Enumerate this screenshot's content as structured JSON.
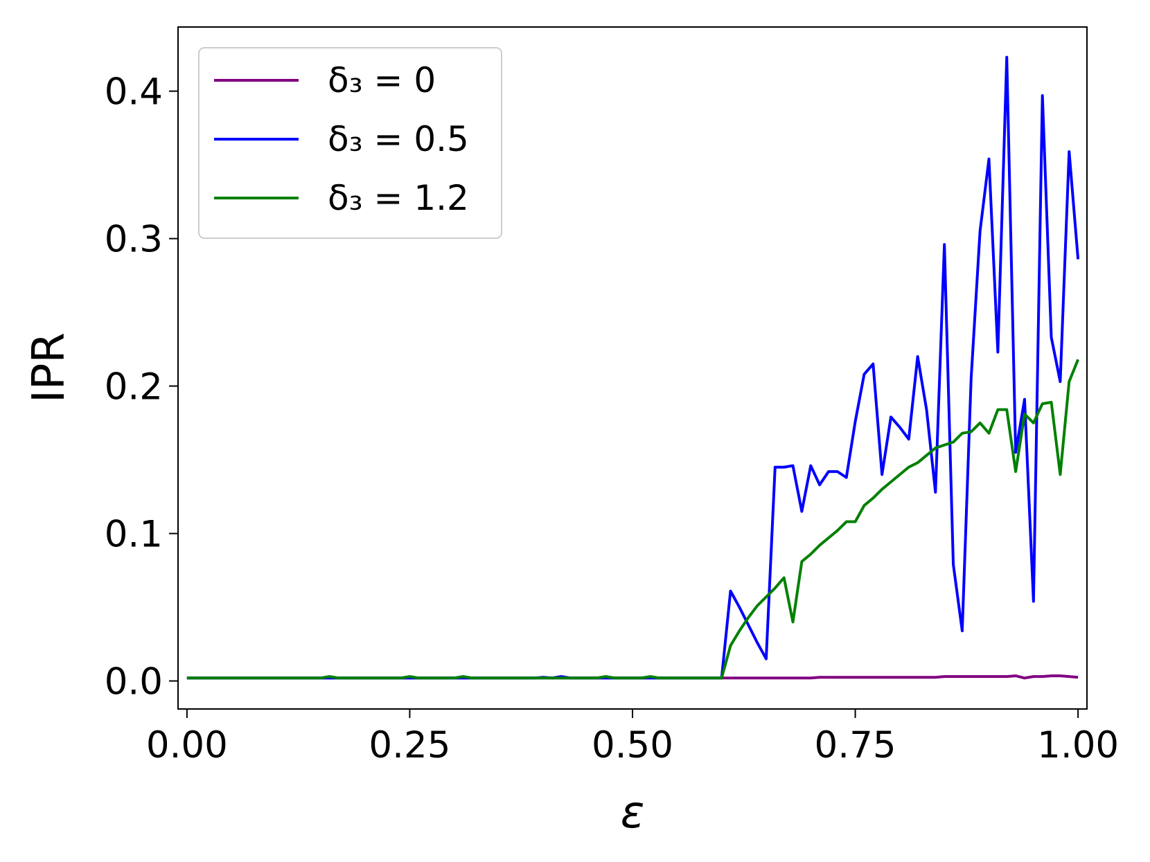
{
  "chart_data": {
    "type": "line",
    "xlabel": "ε",
    "ylabel": "IPR",
    "xlim": [
      -0.01,
      1.01
    ],
    "ylim": [
      -0.019,
      0.4435
    ],
    "xticks": [
      {
        "value": 0,
        "label": "0.00"
      },
      {
        "value": 0.25,
        "label": "0.25"
      },
      {
        "value": 0.5,
        "label": "0.50"
      },
      {
        "value": 0.75,
        "label": "0.75"
      },
      {
        "value": 1,
        "label": "1.00"
      }
    ],
    "yticks": [
      {
        "value": 0,
        "label": "0.0"
      },
      0.1,
      0.2,
      0.3,
      0.4
    ],
    "legend": "upper left",
    "x": [
      0,
      0.01,
      0.02,
      0.03,
      0.04,
      0.05,
      0.06,
      0.07,
      0.08,
      0.09,
      0.1,
      0.11,
      0.12,
      0.13,
      0.14,
      0.15,
      0.16,
      0.17,
      0.18,
      0.19,
      0.2,
      0.21,
      0.22,
      0.23,
      0.24,
      0.25,
      0.26,
      0.27,
      0.28,
      0.29,
      0.3,
      0.31,
      0.32,
      0.33,
      0.34,
      0.35,
      0.36,
      0.37,
      0.38,
      0.39,
      0.4,
      0.41,
      0.42,
      0.43,
      0.44,
      0.45,
      0.46,
      0.47,
      0.48,
      0.49,
      0.5,
      0.51,
      0.52,
      0.53,
      0.54,
      0.55,
      0.56,
      0.57,
      0.58,
      0.59,
      0.6,
      0.61,
      0.62,
      0.63,
      0.64,
      0.65,
      0.66,
      0.67,
      0.68,
      0.69,
      0.7,
      0.71,
      0.72,
      0.73,
      0.74,
      0.75,
      0.76,
      0.77,
      0.78,
      0.79,
      0.8,
      0.81,
      0.82,
      0.83,
      0.84,
      0.85,
      0.86,
      0.87,
      0.88,
      0.89,
      0.9,
      0.91,
      0.92,
      0.93,
      0.94,
      0.95,
      0.96,
      0.97,
      0.98,
      0.99,
      1
    ],
    "series": [
      {
        "name": "δ₃ = 0",
        "color": "#800080",
        "values": [
          0.002,
          0.002,
          0.002,
          0.002,
          0.002,
          0.002,
          0.002,
          0.002,
          0.002,
          0.002,
          0.002,
          0.002,
          0.002,
          0.002,
          0.002,
          0.002,
          0.002,
          0.002,
          0.002,
          0.002,
          0.002,
          0.002,
          0.002,
          0.002,
          0.002,
          0.002,
          0.002,
          0.002,
          0.002,
          0.002,
          0.002,
          0.002,
          0.002,
          0.002,
          0.002,
          0.002,
          0.002,
          0.002,
          0.002,
          0.002,
          0.002,
          0.002,
          0.002,
          0.002,
          0.002,
          0.002,
          0.002,
          0.002,
          0.002,
          0.002,
          0.002,
          0.002,
          0.002,
          0.002,
          0.002,
          0.002,
          0.002,
          0.002,
          0.002,
          0.002,
          0.002,
          0.002,
          0.002,
          0.002,
          0.002,
          0.002,
          0.002,
          0.002,
          0.002,
          0.002,
          0.002,
          0.0025,
          0.0025,
          0.0025,
          0.0025,
          0.0025,
          0.0025,
          0.0025,
          0.0025,
          0.0025,
          0.0025,
          0.0025,
          0.0025,
          0.0025,
          0.0025,
          0.003,
          0.003,
          0.003,
          0.003,
          0.003,
          0.003,
          0.003,
          0.003,
          0.0035,
          0.002,
          0.003,
          0.003,
          0.0035,
          0.0035,
          0.003,
          0.0025
        ]
      },
      {
        "name": "δ₃ = 0.5",
        "color": "#0000ff",
        "values": [
          0.002,
          0.002,
          0.002,
          0.002,
          0.002,
          0.002,
          0.002,
          0.002,
          0.002,
          0.002,
          0.002,
          0.002,
          0.002,
          0.002,
          0.002,
          0.002,
          0.002,
          0.002,
          0.002,
          0.002,
          0.002,
          0.002,
          0.002,
          0.002,
          0.002,
          0.002,
          0.002,
          0.002,
          0.002,
          0.002,
          0.002,
          0.002,
          0.002,
          0.002,
          0.002,
          0.002,
          0.002,
          0.002,
          0.002,
          0.002,
          0.0025,
          0.002,
          0.003,
          0.002,
          0.002,
          0.002,
          0.002,
          0.002,
          0.002,
          0.002,
          0.002,
          0.002,
          0.002,
          0.002,
          0.002,
          0.002,
          0.002,
          0.002,
          0.002,
          0.002,
          0.002,
          0.061,
          0.05,
          0.038,
          0.026,
          0.015,
          0.145,
          0.145,
          0.146,
          0.115,
          0.146,
          0.133,
          0.142,
          0.142,
          0.138,
          0.176,
          0.208,
          0.215,
          0.14,
          0.179,
          0.172,
          0.164,
          0.22,
          0.184,
          0.128,
          0.296,
          0.079,
          0.034,
          0.205,
          0.305,
          0.354,
          0.223,
          0.423,
          0.155,
          0.191,
          0.054,
          0.397,
          0.233,
          0.203,
          0.359,
          0.286
        ]
      },
      {
        "name": "δ₃ = 1.2",
        "color": "#008000",
        "values": [
          0.002,
          0.002,
          0.002,
          0.002,
          0.002,
          0.002,
          0.002,
          0.002,
          0.002,
          0.002,
          0.002,
          0.002,
          0.002,
          0.002,
          0.002,
          0.002,
          0.003,
          0.002,
          0.002,
          0.002,
          0.002,
          0.002,
          0.002,
          0.002,
          0.002,
          0.003,
          0.002,
          0.002,
          0.002,
          0.002,
          0.002,
          0.003,
          0.002,
          0.002,
          0.002,
          0.002,
          0.002,
          0.002,
          0.002,
          0.002,
          0.002,
          0.002,
          0.002,
          0.002,
          0.002,
          0.002,
          0.002,
          0.003,
          0.002,
          0.002,
          0.002,
          0.002,
          0.003,
          0.002,
          0.002,
          0.002,
          0.002,
          0.002,
          0.002,
          0.002,
          0.002,
          0.024,
          0.034,
          0.043,
          0.051,
          0.057,
          0.063,
          0.07,
          0.04,
          0.081,
          0.086,
          0.092,
          0.097,
          0.102,
          0.108,
          0.108,
          0.119,
          0.124,
          0.13,
          0.135,
          0.14,
          0.145,
          0.148,
          0.153,
          0.158,
          0.16,
          0.162,
          0.168,
          0.169,
          0.175,
          0.168,
          0.184,
          0.184,
          0.142,
          0.181,
          0.175,
          0.188,
          0.189,
          0.14,
          0.203,
          0.218
        ]
      }
    ]
  }
}
